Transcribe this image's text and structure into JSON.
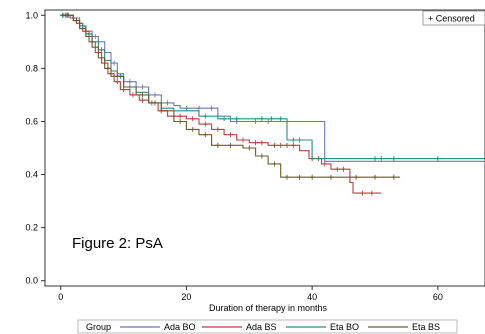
{
  "chart_data": {
    "type": "line",
    "subtype": "kaplan-meier step plot",
    "title": "",
    "xlabel": "Duration of therapy in months",
    "ylabel": "",
    "xlim": [
      -2.5,
      67.5
    ],
    "ylim": [
      -0.02,
      1.02
    ],
    "x_ticks": [
      0,
      20,
      40,
      60
    ],
    "x_tick_labels": [
      "0",
      "20",
      "40",
      "60"
    ],
    "y_ticks": [
      0.0,
      0.2,
      0.4,
      0.6,
      0.8,
      1.0
    ],
    "y_tick_labels": [
      "0.0",
      "0.2",
      "0.4",
      "0.6",
      "0.8",
      "1.0"
    ],
    "grid": false,
    "annotation": "Figure 2: PsA",
    "censor_legend": "+ Censored",
    "legend_title": "Group",
    "legend_position": "bottom",
    "series": [
      {
        "name": "Ada BO",
        "color": "#6b78b4",
        "steps": [
          [
            0,
            1.0
          ],
          [
            2,
            0.99
          ],
          [
            3,
            0.96
          ],
          [
            4,
            0.94
          ],
          [
            5,
            0.92
          ],
          [
            6,
            0.9
          ],
          [
            7,
            0.86
          ],
          [
            8,
            0.82
          ],
          [
            9,
            0.78
          ],
          [
            10,
            0.75
          ],
          [
            12,
            0.73
          ],
          [
            14,
            0.7
          ],
          [
            16,
            0.67
          ],
          [
            18,
            0.66
          ],
          [
            19,
            0.65
          ],
          [
            25,
            0.62
          ],
          [
            27,
            0.6
          ],
          [
            42,
            0.45
          ],
          [
            67.5,
            0.45
          ]
        ],
        "censored": [
          [
            0.5,
            1.0
          ],
          [
            1,
            1.0
          ],
          [
            5.5,
            0.92
          ],
          [
            8.5,
            0.82
          ],
          [
            11,
            0.75
          ],
          [
            13,
            0.73
          ],
          [
            15,
            0.7
          ],
          [
            17,
            0.67
          ],
          [
            20,
            0.65
          ],
          [
            22,
            0.65
          ],
          [
            24,
            0.65
          ],
          [
            28,
            0.6
          ],
          [
            31,
            0.6
          ],
          [
            33,
            0.6
          ]
        ]
      },
      {
        "name": "Ada BS",
        "color": "#b84040",
        "steps": [
          [
            0,
            1.0
          ],
          [
            1.5,
            0.99
          ],
          [
            2.5,
            0.97
          ],
          [
            3.5,
            0.94
          ],
          [
            4.5,
            0.9
          ],
          [
            5.5,
            0.86
          ],
          [
            6.5,
            0.82
          ],
          [
            7.5,
            0.78
          ],
          [
            8.5,
            0.75
          ],
          [
            9.5,
            0.72
          ],
          [
            11,
            0.7
          ],
          [
            12.5,
            0.68
          ],
          [
            14,
            0.67
          ],
          [
            15.5,
            0.64
          ],
          [
            17,
            0.62
          ],
          [
            20,
            0.61
          ],
          [
            22,
            0.59
          ],
          [
            24,
            0.57
          ],
          [
            26,
            0.55
          ],
          [
            28,
            0.53
          ],
          [
            30,
            0.52
          ],
          [
            33,
            0.51
          ],
          [
            38,
            0.49
          ],
          [
            39.5,
            0.46
          ],
          [
            41.5,
            0.44
          ],
          [
            43,
            0.42
          ],
          [
            46,
            0.37
          ],
          [
            46.5,
            0.33
          ],
          [
            51,
            0.33
          ]
        ],
        "censored": [
          [
            0.8,
            1.0
          ],
          [
            1.2,
            1.0
          ],
          [
            2,
            0.99
          ],
          [
            3,
            0.97
          ],
          [
            4,
            0.94
          ],
          [
            5,
            0.9
          ],
          [
            6,
            0.86
          ],
          [
            7,
            0.82
          ],
          [
            8,
            0.78
          ],
          [
            9,
            0.75
          ],
          [
            10,
            0.72
          ],
          [
            11.5,
            0.7
          ],
          [
            13,
            0.68
          ],
          [
            14.5,
            0.67
          ],
          [
            16,
            0.64
          ],
          [
            18,
            0.62
          ],
          [
            19,
            0.62
          ],
          [
            21,
            0.61
          ],
          [
            23,
            0.59
          ],
          [
            25,
            0.57
          ],
          [
            27,
            0.55
          ],
          [
            29,
            0.53
          ],
          [
            31,
            0.52
          ],
          [
            32,
            0.52
          ],
          [
            34,
            0.51
          ],
          [
            35,
            0.51
          ],
          [
            36,
            0.51
          ],
          [
            37,
            0.51
          ],
          [
            40,
            0.46
          ],
          [
            41,
            0.46
          ],
          [
            42,
            0.44
          ],
          [
            44,
            0.42
          ],
          [
            45,
            0.42
          ],
          [
            48,
            0.33
          ],
          [
            49.5,
            0.33
          ]
        ]
      },
      {
        "name": "Eta BO",
        "color": "#2a8a8a",
        "steps": [
          [
            0,
            1.0
          ],
          [
            2,
            0.98
          ],
          [
            3,
            0.96
          ],
          [
            4,
            0.93
          ],
          [
            5,
            0.9
          ],
          [
            6,
            0.87
          ],
          [
            7,
            0.83
          ],
          [
            8,
            0.79
          ],
          [
            9,
            0.77
          ],
          [
            10,
            0.73
          ],
          [
            12,
            0.71
          ],
          [
            14,
            0.67
          ],
          [
            16,
            0.65
          ],
          [
            18,
            0.64
          ],
          [
            22,
            0.62
          ],
          [
            25,
            0.61
          ],
          [
            36,
            0.53
          ],
          [
            40,
            0.46
          ],
          [
            67.5,
            0.46
          ]
        ],
        "censored": [
          [
            0.3,
            1.0
          ],
          [
            1.2,
            1.0
          ],
          [
            3.5,
            0.96
          ],
          [
            4.5,
            0.93
          ],
          [
            6.5,
            0.87
          ],
          [
            9.5,
            0.77
          ],
          [
            11,
            0.73
          ],
          [
            23,
            0.62
          ],
          [
            26,
            0.61
          ],
          [
            28,
            0.61
          ],
          [
            32,
            0.61
          ],
          [
            33.5,
            0.61
          ],
          [
            35,
            0.61
          ],
          [
            37,
            0.53
          ],
          [
            38,
            0.53
          ],
          [
            50,
            0.46
          ],
          [
            51,
            0.46
          ],
          [
            53,
            0.46
          ],
          [
            60,
            0.46
          ]
        ]
      },
      {
        "name": "Eta BS",
        "color": "#6b5a2a",
        "steps": [
          [
            0,
            1.0
          ],
          [
            2,
            0.98
          ],
          [
            3,
            0.95
          ],
          [
            4,
            0.92
          ],
          [
            5,
            0.88
          ],
          [
            6,
            0.84
          ],
          [
            7,
            0.8
          ],
          [
            8,
            0.77
          ],
          [
            10,
            0.73
          ],
          [
            12,
            0.7
          ],
          [
            14,
            0.67
          ],
          [
            16,
            0.64
          ],
          [
            18,
            0.6
          ],
          [
            20,
            0.57
          ],
          [
            22,
            0.55
          ],
          [
            24,
            0.51
          ],
          [
            29,
            0.5
          ],
          [
            31,
            0.47
          ],
          [
            33,
            0.44
          ],
          [
            35,
            0.39
          ],
          [
            46,
            0.39
          ],
          [
            54,
            0.39
          ]
        ],
        "censored": [
          [
            1,
            1.0
          ],
          [
            2.5,
            0.98
          ],
          [
            4.5,
            0.92
          ],
          [
            7.5,
            0.8
          ],
          [
            9,
            0.77
          ],
          [
            13,
            0.7
          ],
          [
            15,
            0.67
          ],
          [
            19,
            0.6
          ],
          [
            21,
            0.57
          ],
          [
            23,
            0.55
          ],
          [
            25,
            0.51
          ],
          [
            27,
            0.51
          ],
          [
            30,
            0.5
          ],
          [
            32,
            0.47
          ],
          [
            34,
            0.44
          ],
          [
            36,
            0.39
          ],
          [
            38,
            0.39
          ],
          [
            40,
            0.39
          ],
          [
            43,
            0.39
          ],
          [
            47,
            0.39
          ],
          [
            50,
            0.39
          ],
          [
            53,
            0.39
          ]
        ]
      }
    ]
  }
}
